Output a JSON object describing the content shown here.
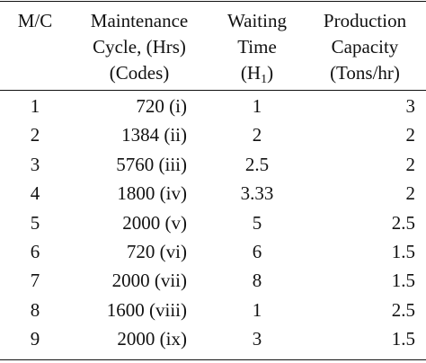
{
  "table": {
    "headers": {
      "mc": [
        "M/C"
      ],
      "maintenance": [
        "Maintenance",
        "Cycle, (Hrs)",
        "(Codes)"
      ],
      "waiting": [
        "Waiting",
        "Time",
        "(H",
        "1",
        ")"
      ],
      "production": [
        "Production",
        "Capacity",
        "(Tons/hr)"
      ]
    },
    "rows": [
      {
        "mc": "1",
        "cycle": "720 (i)",
        "wait": "1",
        "cap": "3"
      },
      {
        "mc": "2",
        "cycle": "1384 (ii)",
        "wait": "2",
        "cap": "2"
      },
      {
        "mc": "3",
        "cycle": "5760 (iii)",
        "wait": "2.5",
        "cap": "2"
      },
      {
        "mc": "4",
        "cycle": "1800 (iv)",
        "wait": "3.33",
        "cap": "2"
      },
      {
        "mc": "5",
        "cycle": "2000 (v)",
        "wait": "5",
        "cap": "2.5"
      },
      {
        "mc": "6",
        "cycle": "720 (vi)",
        "wait": "6",
        "cap": "1.5"
      },
      {
        "mc": "7",
        "cycle": "2000 (vii)",
        "wait": "8",
        "cap": "1.5"
      },
      {
        "mc": "8",
        "cycle": "1600 (viii)",
        "wait": "1",
        "cap": "2.5"
      },
      {
        "mc": "9",
        "cycle": "2000 (ix)",
        "wait": "3",
        "cap": "1.5"
      }
    ]
  }
}
